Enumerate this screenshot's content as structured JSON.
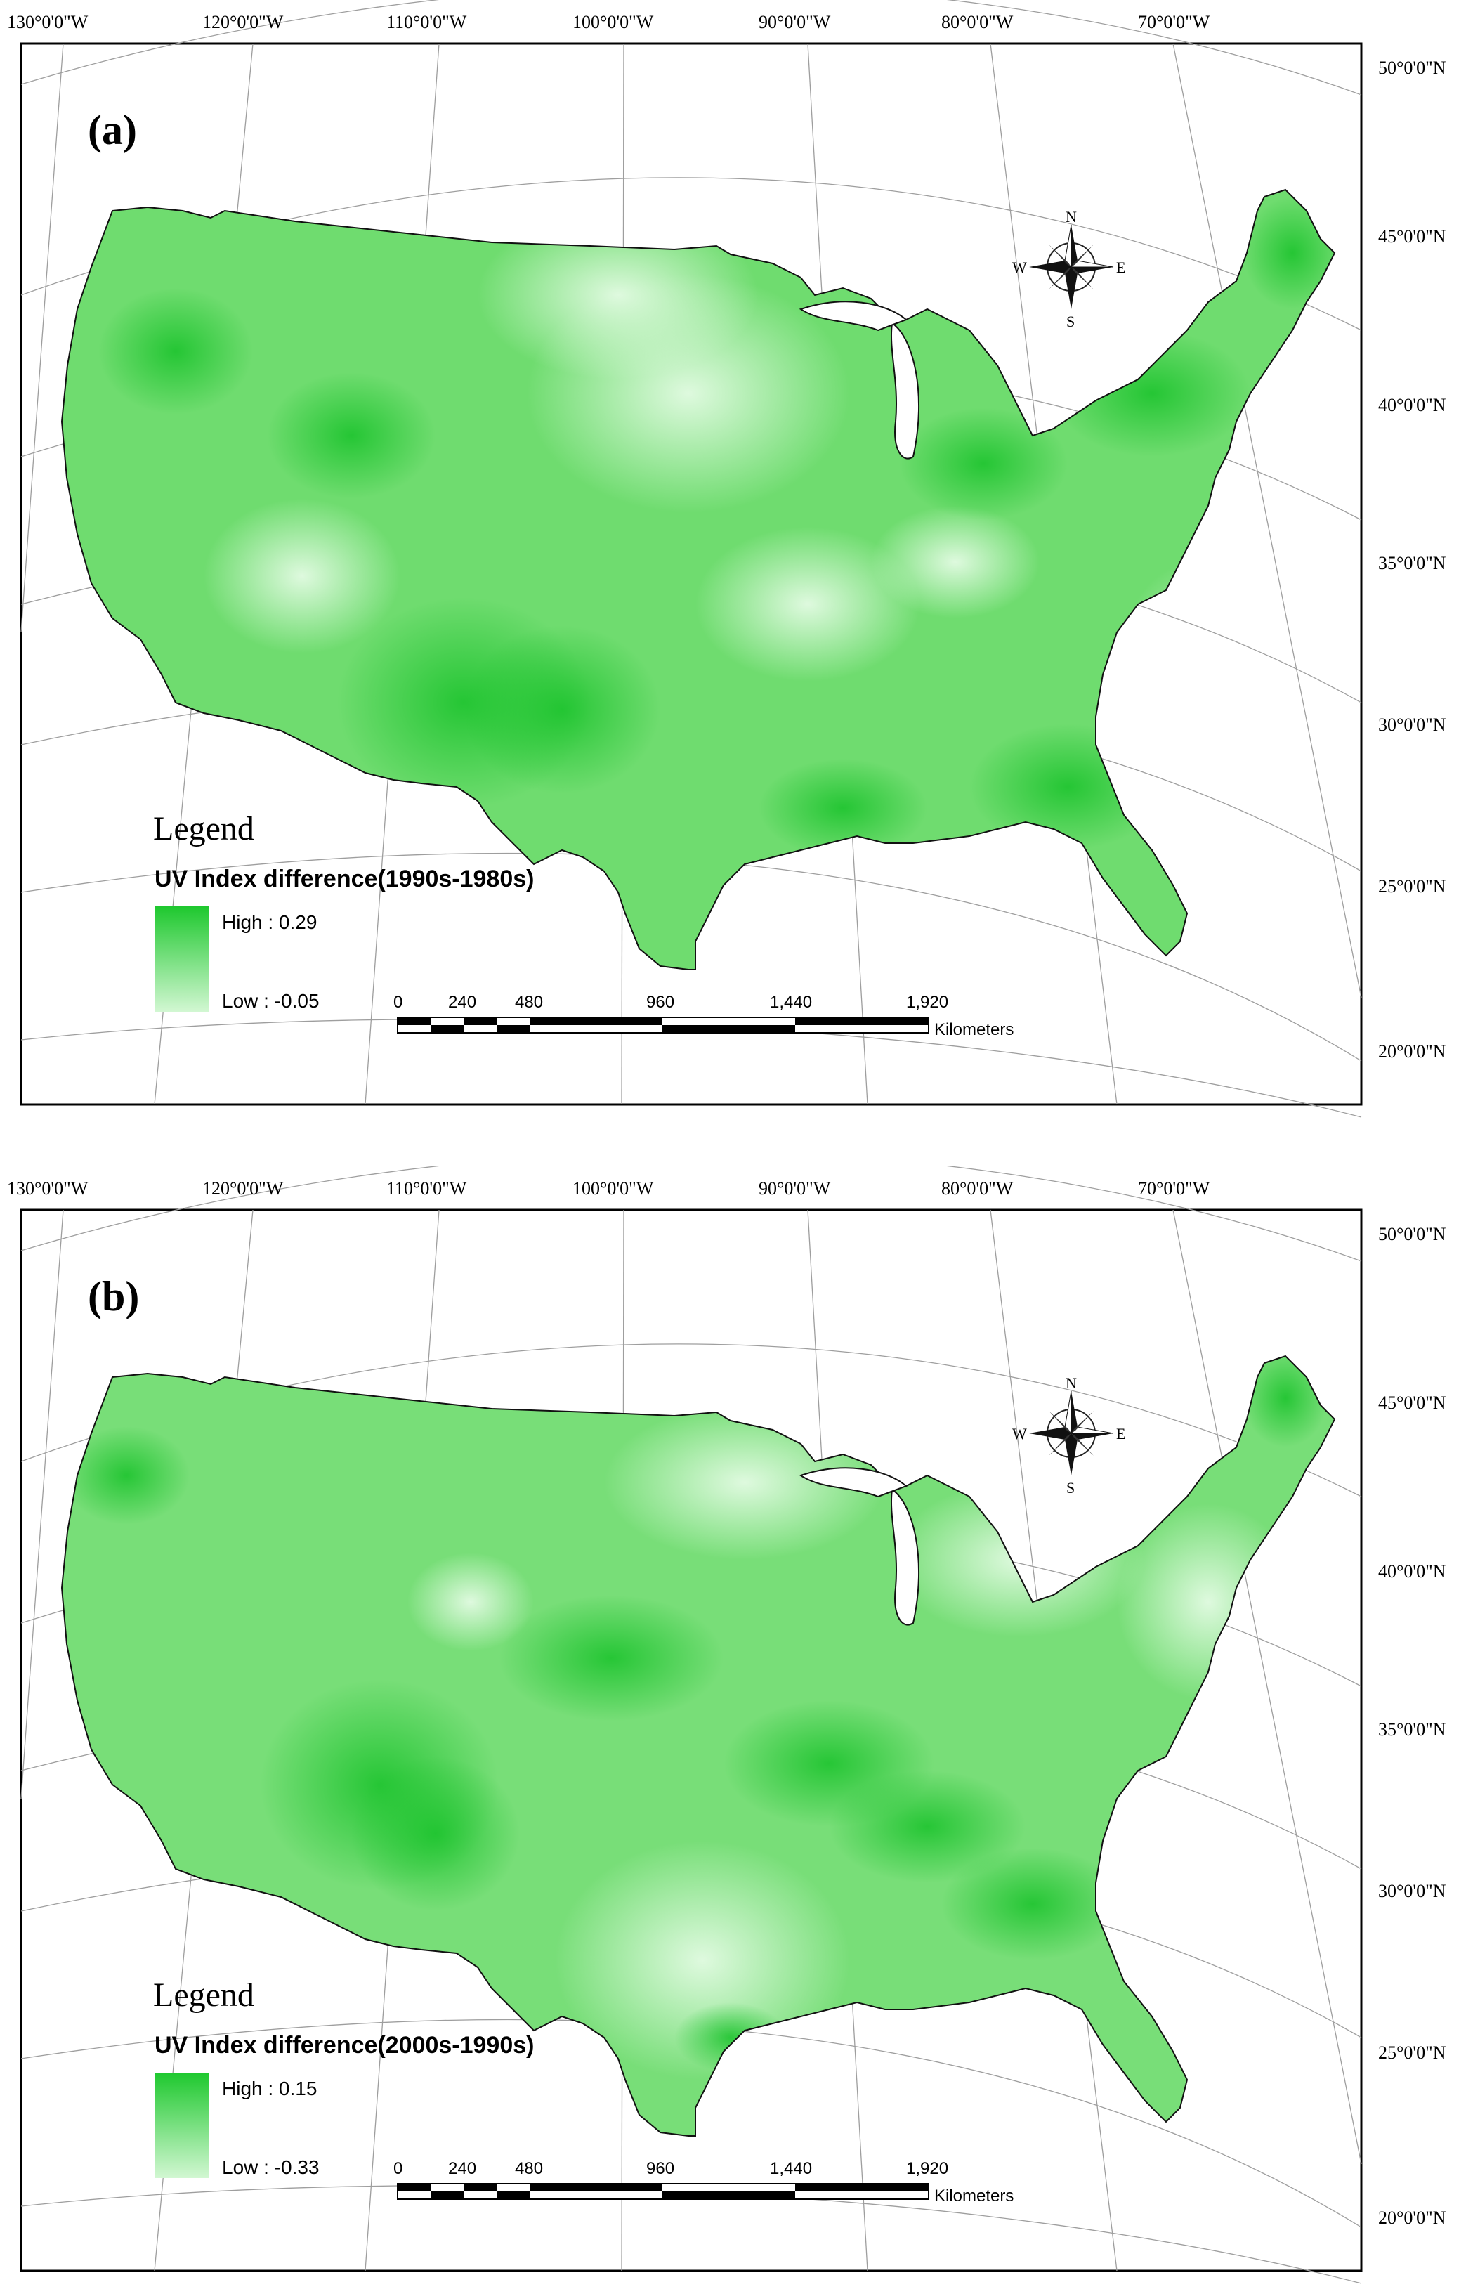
{
  "longitudes": [
    "130°0'0\"W",
    "120°0'0\"W",
    "110°0'0\"W",
    "100°0'0\"W",
    "90°0'0\"W",
    "80°0'0\"W",
    "70°0'0\"W"
  ],
  "latitudes": [
    "50°0'0\"N",
    "45°0'0\"N",
    "40°0'0\"N",
    "35°0'0\"N",
    "30°0'0\"N",
    "25°0'0\"N",
    "20°0'0\"N"
  ],
  "compass": {
    "n": "N",
    "s": "S",
    "e": "E",
    "w": "W"
  },
  "scalebar": {
    "ticks": [
      "0",
      "240",
      "480",
      "960",
      "1,440",
      "1,920"
    ],
    "unit": "Kilometers"
  },
  "colors": {
    "high": "#1ec82e",
    "low": "#d2f7d2",
    "mid": "#72dd72"
  },
  "panels": [
    {
      "label": "(a)",
      "legend_title": "Legend",
      "legend_subtitle": "UV Index difference(1990s-1980s)",
      "high_label": "High : 0.29",
      "low_label": "Low : -0.05",
      "range": {
        "high": 0.29,
        "low": -0.05
      }
    },
    {
      "label": "(b)",
      "legend_title": "Legend",
      "legend_subtitle": "UV Index difference(2000s-1990s)",
      "high_label": "High : 0.15",
      "low_label": "Low : -0.33",
      "range": {
        "high": 0.15,
        "low": -0.33
      }
    }
  ]
}
